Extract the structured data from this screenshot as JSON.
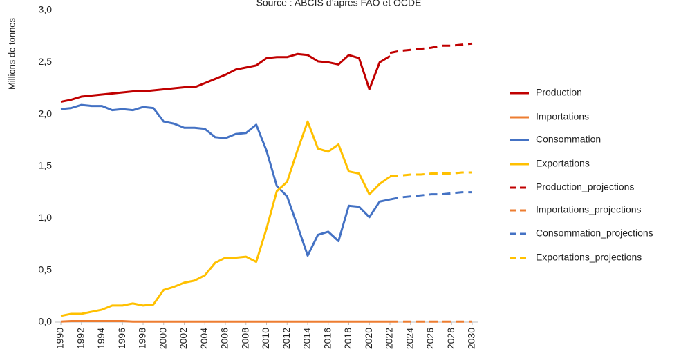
{
  "chart_data": {
    "type": "line",
    "title": "Source : ABCIS d’après FAO et OCDE",
    "y_label": "Millions de tonnes",
    "x": [
      1990,
      1991,
      1992,
      1993,
      1994,
      1995,
      1996,
      1997,
      1998,
      1999,
      2000,
      2001,
      2002,
      2003,
      2004,
      2005,
      2006,
      2007,
      2008,
      2009,
      2010,
      2011,
      2012,
      2013,
      2014,
      2015,
      2016,
      2017,
      2018,
      2019,
      2020,
      2021,
      2022,
      2023,
      2024,
      2025,
      2026,
      2027,
      2028,
      2029,
      2030
    ],
    "xlim": [
      1990,
      2030
    ],
    "xticks": [
      1990,
      1992,
      1994,
      1996,
      1998,
      2000,
      2002,
      2004,
      2006,
      2008,
      2010,
      2012,
      2014,
      2016,
      2018,
      2020,
      2022,
      2024,
      2026,
      2028,
      2030
    ],
    "ylim": [
      0,
      3
    ],
    "yticks": [
      {
        "value": 0,
        "label": "0,0"
      },
      {
        "value": 0.5,
        "label": "0,5"
      },
      {
        "value": 1,
        "label": "1,0"
      },
      {
        "value": 1.5,
        "label": "1,5"
      },
      {
        "value": 2,
        "label": "2,0"
      },
      {
        "value": 2.5,
        "label": "2,5"
      },
      {
        "value": 3,
        "label": "3,0"
      }
    ],
    "grid": false,
    "legend": "right",
    "series": [
      {
        "name": "Production",
        "color": "#c00000",
        "dashed": false,
        "values": [
          2.12,
          2.14,
          2.17,
          2.18,
          2.19,
          2.2,
          2.21,
          2.22,
          2.22,
          2.23,
          2.24,
          2.25,
          2.26,
          2.26,
          2.3,
          2.34,
          2.38,
          2.43,
          2.45,
          2.47,
          2.54,
          2.55,
          2.55,
          2.58,
          2.57,
          2.51,
          2.5,
          2.48,
          2.57,
          2.54,
          2.24,
          2.5,
          2.56,
          null,
          null,
          null,
          null,
          null,
          null,
          null,
          null
        ]
      },
      {
        "name": "Importations",
        "color": "#ed7d31",
        "dashed": false,
        "values": [
          0.005,
          0.01,
          0.01,
          0.01,
          0.01,
          0.01,
          0.01,
          0.005,
          0.005,
          0.005,
          0.005,
          0.005,
          0.005,
          0.005,
          0.005,
          0.005,
          0.005,
          0.005,
          0.005,
          0.005,
          0.005,
          0.005,
          0.005,
          0.005,
          0.005,
          0.005,
          0.005,
          0.005,
          0.005,
          0.005,
          0.005,
          0.005,
          0.005,
          null,
          null,
          null,
          null,
          null,
          null,
          null,
          null
        ]
      },
      {
        "name": "Consommation",
        "color": "#4472c4",
        "dashed": false,
        "values": [
          2.05,
          2.06,
          2.09,
          2.08,
          2.08,
          2.04,
          2.05,
          2.04,
          2.07,
          2.06,
          1.93,
          1.91,
          1.87,
          1.87,
          1.86,
          1.78,
          1.77,
          1.81,
          1.82,
          1.9,
          1.65,
          1.31,
          1.21,
          0.93,
          0.64,
          0.84,
          0.87,
          0.78,
          1.12,
          1.11,
          1.01,
          1.16,
          1.18,
          null,
          null,
          null,
          null,
          null,
          null,
          null,
          null
        ]
      },
      {
        "name": "Exportations",
        "color": "#ffc000",
        "dashed": false,
        "values": [
          0.06,
          0.08,
          0.08,
          0.1,
          0.12,
          0.16,
          0.16,
          0.18,
          0.16,
          0.17,
          0.31,
          0.34,
          0.38,
          0.4,
          0.45,
          0.57,
          0.62,
          0.62,
          0.63,
          0.58,
          0.9,
          1.26,
          1.35,
          1.65,
          1.93,
          1.67,
          1.64,
          1.71,
          1.45,
          1.43,
          1.23,
          1.33,
          1.4,
          null,
          null,
          null,
          null,
          null,
          null,
          null,
          null
        ]
      },
      {
        "name": "Production_projections",
        "color": "#c00000",
        "dashed": true,
        "values": [
          null,
          null,
          null,
          null,
          null,
          null,
          null,
          null,
          null,
          null,
          null,
          null,
          null,
          null,
          null,
          null,
          null,
          null,
          null,
          null,
          null,
          null,
          null,
          null,
          null,
          null,
          null,
          null,
          null,
          null,
          null,
          null,
          2.59,
          2.61,
          2.62,
          2.63,
          2.64,
          2.66,
          2.66,
          2.67,
          2.68
        ]
      },
      {
        "name": "Importations_projections",
        "color": "#ed7d31",
        "dashed": true,
        "values": [
          null,
          null,
          null,
          null,
          null,
          null,
          null,
          null,
          null,
          null,
          null,
          null,
          null,
          null,
          null,
          null,
          null,
          null,
          null,
          null,
          null,
          null,
          null,
          null,
          null,
          null,
          null,
          null,
          null,
          null,
          null,
          null,
          0.005,
          0.005,
          0.005,
          0.005,
          0.005,
          0.005,
          0.005,
          0.005,
          0.005
        ]
      },
      {
        "name": "Consommation_projections",
        "color": "#4472c4",
        "dashed": true,
        "values": [
          null,
          null,
          null,
          null,
          null,
          null,
          null,
          null,
          null,
          null,
          null,
          null,
          null,
          null,
          null,
          null,
          null,
          null,
          null,
          null,
          null,
          null,
          null,
          null,
          null,
          null,
          null,
          null,
          null,
          null,
          null,
          null,
          1.18,
          1.2,
          1.21,
          1.22,
          1.23,
          1.23,
          1.24,
          1.25,
          1.25
        ]
      },
      {
        "name": "Exportations_projections",
        "color": "#ffc000",
        "dashed": true,
        "values": [
          null,
          null,
          null,
          null,
          null,
          null,
          null,
          null,
          null,
          null,
          null,
          null,
          null,
          null,
          null,
          null,
          null,
          null,
          null,
          null,
          null,
          null,
          null,
          null,
          null,
          null,
          null,
          null,
          null,
          null,
          null,
          null,
          1.41,
          1.41,
          1.42,
          1.42,
          1.43,
          1.43,
          1.43,
          1.44,
          1.44
        ]
      }
    ]
  }
}
